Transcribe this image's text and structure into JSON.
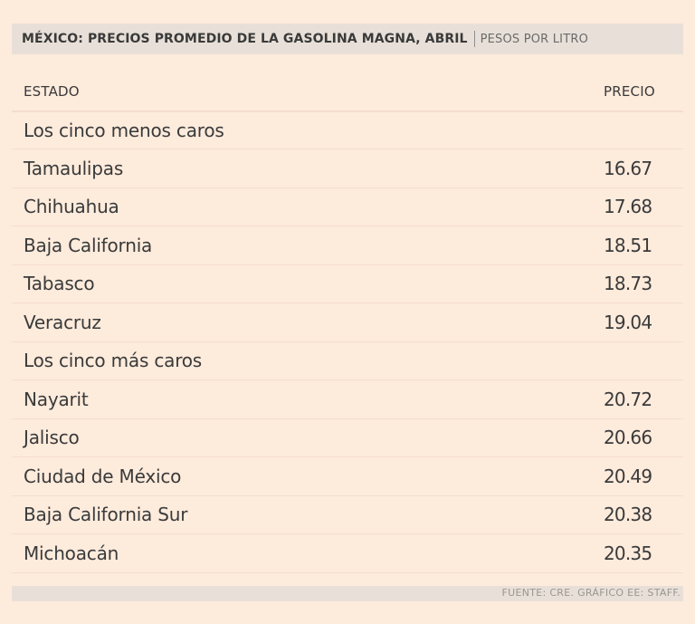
{
  "chart_data": {
    "type": "table",
    "title": "MÉXICO: PRECIOS PROMEDIO DE LA GASOLINA MAGNA, ABRIL",
    "subtitle": "PESOS POR LITRO",
    "columns": [
      "ESTADO",
      "PRECIO"
    ],
    "groups": [
      {
        "label": "Los cinco menos caros",
        "rows": [
          {
            "estado": "Tamaulipas",
            "precio": "16.67"
          },
          {
            "estado": "Chihuahua",
            "precio": "17.68"
          },
          {
            "estado": "Baja California",
            "precio": "18.51"
          },
          {
            "estado": "Tabasco",
            "precio": "18.73"
          },
          {
            "estado": "Veracruz",
            "precio": "19.04"
          }
        ]
      },
      {
        "label": "Los cinco más caros",
        "rows": [
          {
            "estado": "Nayarit",
            "precio": "20.72"
          },
          {
            "estado": "Jalisco",
            "precio": "20.66"
          },
          {
            "estado": "Ciudad de México",
            "precio": "20.49"
          },
          {
            "estado": "Baja California Sur",
            "precio": "20.38"
          },
          {
            "estado": "Michoacán",
            "precio": "20.35"
          }
        ]
      }
    ],
    "source": "FUENTE: CRE. GRÁFICO EE: STAFF."
  }
}
